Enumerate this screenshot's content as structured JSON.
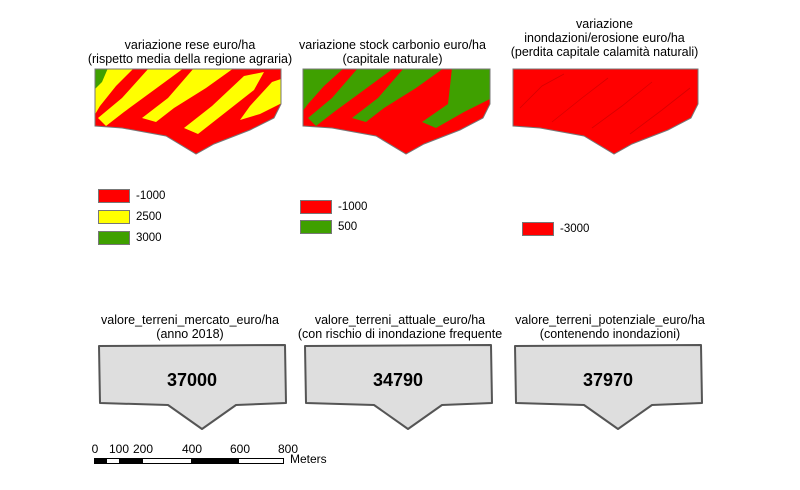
{
  "maps": [
    {
      "title_lines": [
        "variazione rese euro/ha",
        "(rispetto media della regione agraria)"
      ],
      "legend": [
        {
          "color": "#ff0000",
          "label": "-1000"
        },
        {
          "color": "#ffff00",
          "label": "2500"
        },
        {
          "color": "#3fa000",
          "label": "3000"
        }
      ]
    },
    {
      "title_lines": [
        "variazione stock carbonio euro/ha",
        "(capitale naturale)"
      ],
      "legend": [
        {
          "color": "#ff0000",
          "label": "-1000"
        },
        {
          "color": "#3fa000",
          "label": "500"
        }
      ]
    },
    {
      "title_lines": [
        "variazione",
        "inondazioni/erosione euro/ha",
        "(perdita capitale calamità naturali)"
      ],
      "legend": [
        {
          "color": "#ff0000",
          "label": "-3000"
        }
      ]
    }
  ],
  "value_maps": [
    {
      "title_lines": [
        "valore_terreni_mercato_euro/ha",
        "(anno 2018)"
      ],
      "value": "37000",
      "fill": "#dedede"
    },
    {
      "title_lines": [
        "valore_terreni_attuale_euro/ha",
        "(con rischio di inondazione frequente"
      ],
      "value": "34790",
      "fill": "#dedede"
    },
    {
      "title_lines": [
        "valore_terreni_potenziale_euro/ha",
        "(contenendo inondazioni)"
      ],
      "value": "37970",
      "fill": "#dedede"
    }
  ],
  "scalebar": {
    "ticks": [
      "0",
      "100",
      "200",
      "400",
      "600",
      "800"
    ],
    "units": "Meters"
  }
}
